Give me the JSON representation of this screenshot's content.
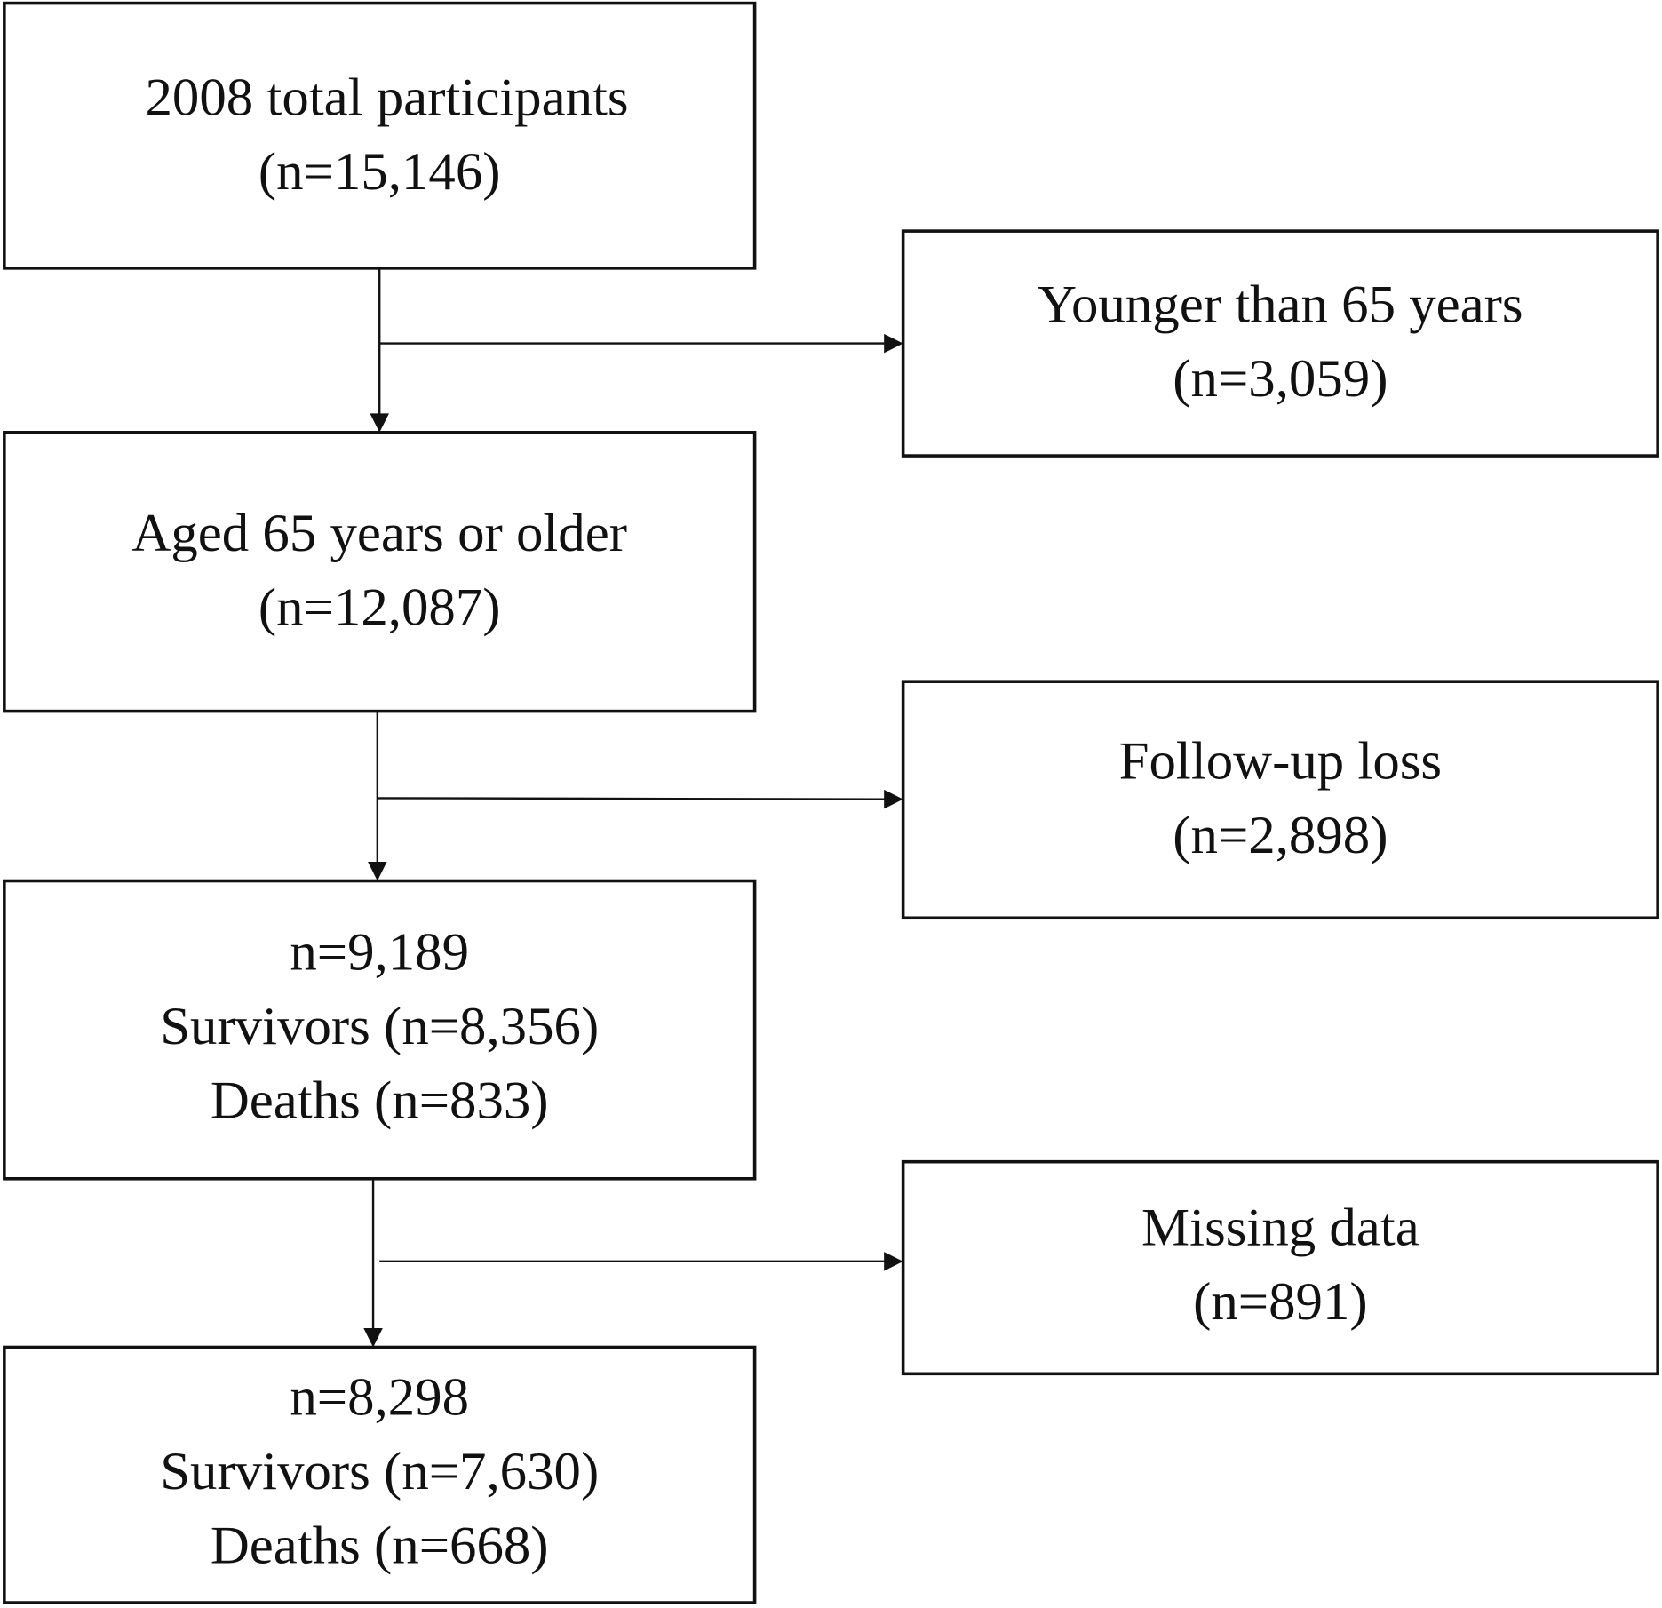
{
  "nodes": [
    {
      "lines": [
        "2008 total participants",
        "(n=15,146)"
      ]
    },
    {
      "lines": [
        "Younger than 65 years",
        "(n=3,059)"
      ]
    },
    {
      "lines": [
        "Aged 65 years or older",
        "(n=12,087)"
      ]
    },
    {
      "lines": [
        "Follow-up loss",
        "(n=2,898)"
      ]
    },
    {
      "lines": [
        "n=9,189",
        "Survivors (n=8,356)",
        "Deaths (n=833)"
      ]
    },
    {
      "lines": [
        "Missing data",
        "(n=891)"
      ]
    },
    {
      "lines": [
        "n=8,298",
        "Survivors (n=7,630)",
        "Deaths (n=668)"
      ]
    }
  ]
}
